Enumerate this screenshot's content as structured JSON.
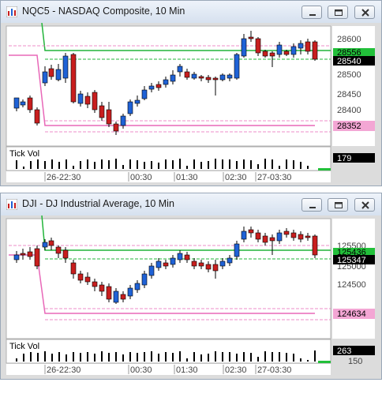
{
  "windows": [
    {
      "title": "NQC5 - NASDAQ Composite, 10 Min",
      "price_labels": [
        "28600",
        "28500",
        "28450",
        "28400"
      ],
      "badge_green": "28556",
      "badge_black": "28540",
      "badge_pink": "28352",
      "tick_vol_label": "Tick Vol",
      "tick_vol_value": "179",
      "time_labels": [
        "26-22:30",
        "00:30",
        "01:30",
        "02:30",
        "27-03:30"
      ]
    },
    {
      "title": "DJI - DJ Industrial Average, 10 Min",
      "price_labels": [
        "125500",
        "125000",
        "124500"
      ],
      "badge_green": "125436",
      "badge_black": "125347",
      "badge_pink": "124634",
      "tick_vol_label": "Tick Vol",
      "tick_vol_value": "263",
      "tick_vol_sub": "150",
      "time_labels": [
        "26-22:30",
        "00:30",
        "01:30",
        "02:30",
        "27-03:30"
      ]
    }
  ],
  "colors": {
    "up": "#1f62d6",
    "down": "#c81e1e",
    "green_line": "#22b43a",
    "pink_line": "#e868b8",
    "badge_green": "#22c03a",
    "badge_pink": "#f3a6d4"
  }
}
